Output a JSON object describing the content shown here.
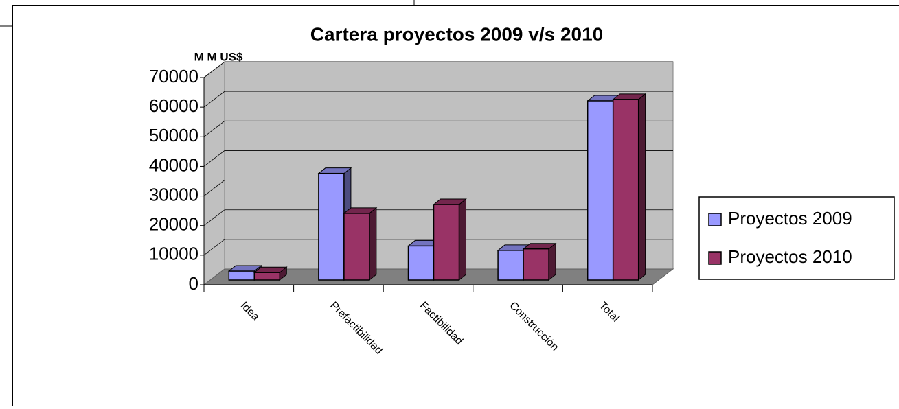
{
  "chart_data": {
    "type": "bar3d",
    "title": "Cartera proyectos 2009 v/s  2010",
    "y_label": "M M  US$",
    "categories": [
      "Idea",
      "Prefactibilidad",
      "Factibilidad",
      "Construcción",
      "Total"
    ],
    "series": [
      {
        "name": "Proyectos 2009",
        "color": "#9999ff",
        "values": [
          3000,
          36000,
          11500,
          10000,
          60500
        ]
      },
      {
        "name": "Proyectos 2010",
        "color": "#993366",
        "values": [
          2500,
          22500,
          25500,
          10500,
          61000
        ]
      }
    ],
    "ylim": [
      0,
      70000
    ],
    "yticks": [
      0,
      10000,
      20000,
      30000,
      40000,
      50000,
      60000,
      70000
    ],
    "grid": true,
    "legend": "right"
  }
}
